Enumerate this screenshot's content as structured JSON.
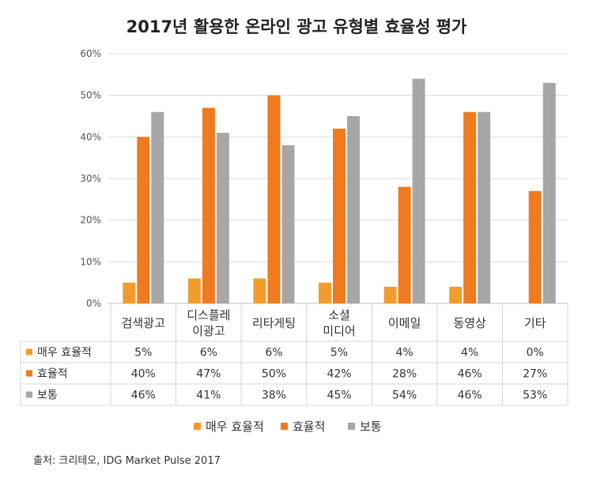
{
  "chart_data": {
    "type": "bar",
    "title": "2017년 활용한 온라인 광고 유형별 효율성 평가",
    "categories": [
      [
        "검색광고"
      ],
      [
        "디스플레",
        "이광고"
      ],
      [
        "리타게팅"
      ],
      [
        "소셜",
        "미디어"
      ],
      [
        "이메일"
      ],
      [
        "동영상"
      ],
      [
        "기타"
      ]
    ],
    "series": [
      {
        "name": "매우 효율적",
        "color": "#F39C2E",
        "values": [
          5,
          6,
          6,
          5,
          4,
          4,
          0
        ],
        "labels": [
          "5%",
          "6%",
          "6%",
          "5%",
          "4%",
          "4%",
          "0%"
        ]
      },
      {
        "name": "효율적",
        "color": "#F07A1E",
        "values": [
          40,
          47,
          50,
          42,
          28,
          46,
          27
        ],
        "labels": [
          "40%",
          "47%",
          "50%",
          "42%",
          "28%",
          "46%",
          "27%"
        ]
      },
      {
        "name": "보통",
        "color": "#A6A6A6",
        "values": [
          46,
          41,
          38,
          45,
          54,
          46,
          53
        ],
        "labels": [
          "46%",
          "41%",
          "38%",
          "45%",
          "54%",
          "46%",
          "53%"
        ]
      }
    ],
    "y_ticks": [
      "0%",
      "10%",
      "20%",
      "30%",
      "40%",
      "50%",
      "60%"
    ],
    "ylim": [
      0,
      60
    ],
    "grid": true,
    "legend_position": "bottom",
    "data_table": true
  },
  "source": "출처: 크리테오, IDG Market Pulse 2017"
}
